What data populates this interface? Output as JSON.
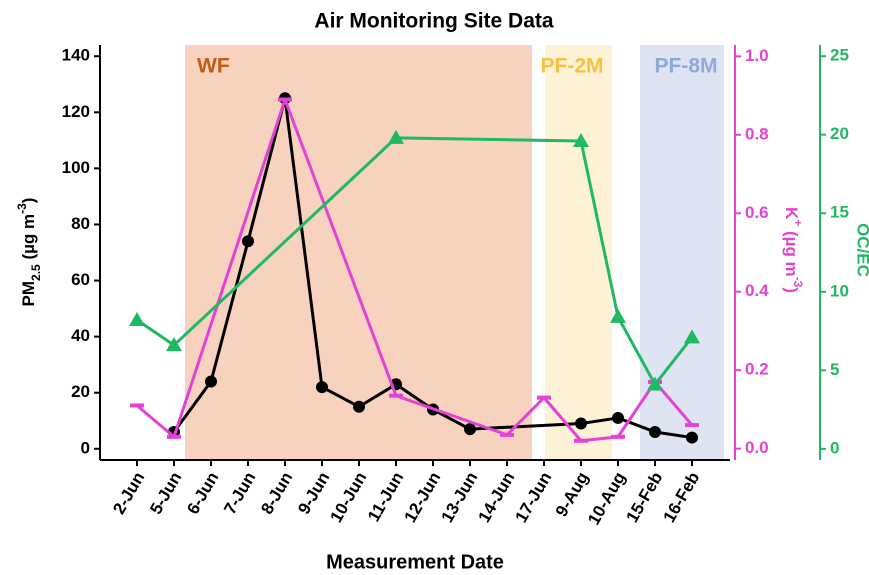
{
  "chart_data": {
    "type": "line",
    "title": "Air Monitoring Site Data",
    "x_label": "Measurement Date",
    "y_label_parts": [
      "PM",
      "2.5",
      " (µg m",
      "-3",
      ")"
    ],
    "y2_label_parts": [
      "K",
      "+",
      " (µg m",
      "-3",
      ")"
    ],
    "y3_label": "OC/EC",
    "categories": [
      "2-Jun",
      "5-Jun",
      "6-Jun",
      "7-Jun",
      "8-Jun",
      "9-Jun",
      "10-Jun",
      "11-Jun",
      "12-Jun",
      "13-Jun",
      "14-Jun",
      "17-Jun",
      "9-Aug",
      "10-Aug",
      "15-Feb",
      "16-Feb"
    ],
    "regions": [
      {
        "label": "WF",
        "fill": "#f7d3bf",
        "text_color": "#c55a11"
      },
      {
        "label": "PF-2M",
        "fill": "#fdf1d6",
        "text_color": "#f5c242"
      },
      {
        "label": "PF-8M",
        "fill": "#dfe4f2",
        "text_color": "#8fa9d9"
      }
    ],
    "ylim": [
      -4,
      144
    ],
    "yticks": [
      0,
      20,
      40,
      60,
      80,
      100,
      120,
      140
    ],
    "y2lim": [
      -0.029,
      1.029
    ],
    "y2ticks": [
      {
        "value": 0,
        "label": "0.0"
      },
      0.2,
      0.4,
      0.6,
      0.8,
      {
        "value": 1,
        "label": "1.0"
      }
    ],
    "y3lim": [
      -0.71,
      25.71
    ],
    "y3ticks": [
      0,
      5,
      10,
      15,
      20,
      25
    ],
    "series": [
      {
        "color": "#000000",
        "marker": "circle",
        "axis": "y",
        "values": [
          null,
          6,
          24,
          74,
          125,
          22,
          15,
          23,
          14,
          7,
          null,
          null,
          9,
          11,
          6,
          4
        ]
      },
      {
        "color": "#e442d6",
        "marker": "dash",
        "axis": "y2",
        "values": [
          0.11,
          0.03,
          null,
          null,
          0.89,
          null,
          null,
          0.135,
          null,
          null,
          0.035,
          0.13,
          0.02,
          0.03,
          0.17,
          0.06
        ]
      },
      {
        "color": "#1fb863",
        "marker": "triangle",
        "axis": "y3",
        "values": [
          8.2,
          6.6,
          null,
          null,
          null,
          null,
          null,
          19.8,
          null,
          null,
          null,
          null,
          19.6,
          8.4,
          4.1,
          7.1
        ]
      }
    ]
  }
}
